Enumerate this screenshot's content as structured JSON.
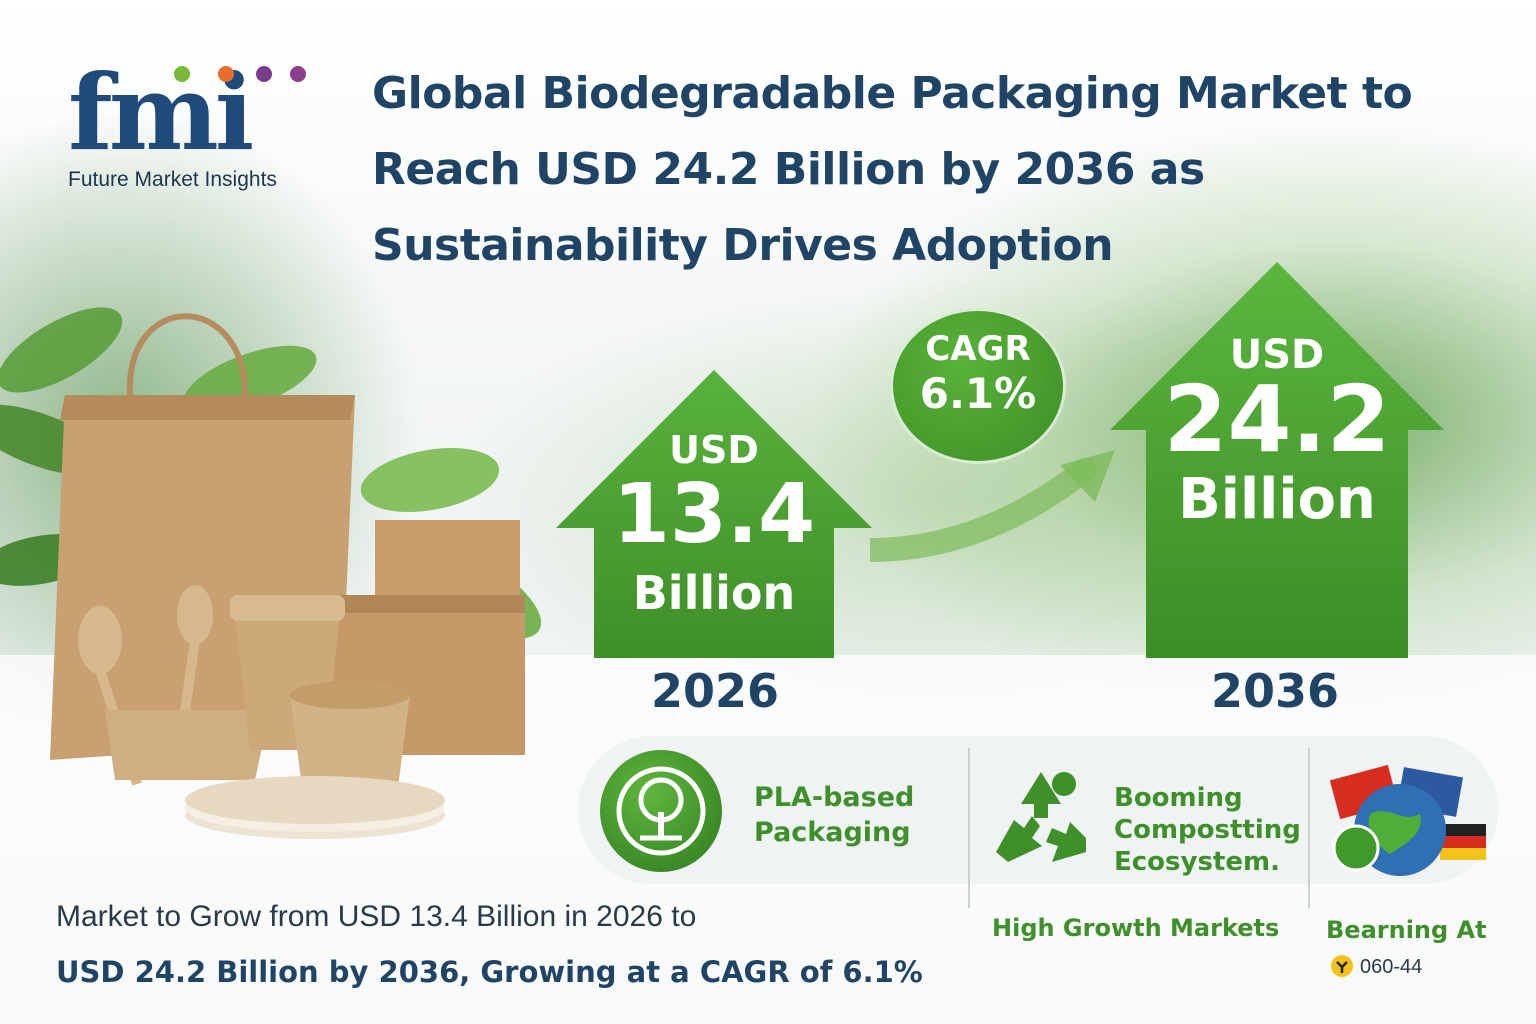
{
  "logo": {
    "mark": "fmi",
    "name": "Future Market Insights",
    "dot_colors": [
      "#7ab83a",
      "#e86d2c",
      "#7a3d8c",
      "#8c3d8c"
    ]
  },
  "title": "Global Biodegradable Packaging Market to Reach USD 24.2 Billion by 2036 as Sustainability Drives Adoption",
  "start": {
    "currency": "USD",
    "value": "13.4",
    "unit": "Billion",
    "year": "2026"
  },
  "end": {
    "currency": "USD",
    "value": "24.2",
    "unit": "Billion",
    "year": "2036"
  },
  "cagr": {
    "label": "CAGR",
    "value": "6.1%"
  },
  "features": [
    {
      "line1": "PLA-based",
      "line2": "Packaging",
      "icon": "tree-leaf-icon"
    },
    {
      "line1": "Booming",
      "line2": "Compostting",
      "line3": "Ecosystem.",
      "caption": "High Growth Markets",
      "icon": "recycle-icon"
    },
    {
      "caption": "Bearning At",
      "code": "060-44",
      "icon": "globe-flags-icon"
    }
  ],
  "summary": {
    "line1": "Market to Grow from USD 13.4 Billion in 2026 to",
    "line2": "USD 24.2 Billion by 2036, Growing at a CAGR of 6.1%"
  },
  "colors": {
    "navy": "#1f4466",
    "green": "#3f8f2a",
    "arrow_green": "#4ea632"
  }
}
